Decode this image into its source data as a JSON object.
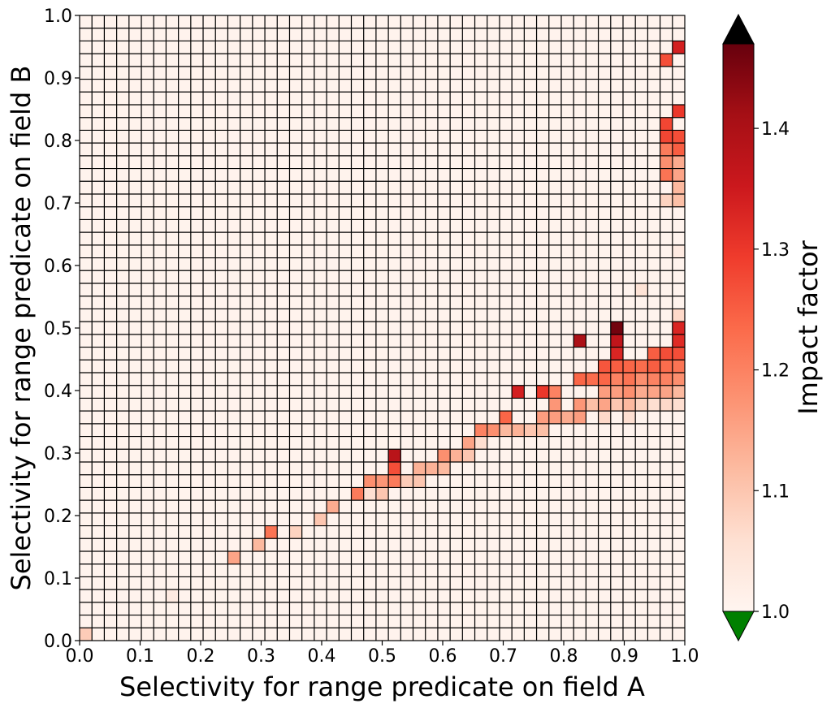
{
  "chart_data": {
    "type": "heatmap",
    "title": "",
    "xlabel": "Selectivity for range predicate on field A",
    "ylabel": "Selectivity for range predicate on field B",
    "xlim": [
      0.0,
      1.0
    ],
    "ylim": [
      0.0,
      1.0
    ],
    "grid_bins": 49,
    "x_ticks": [
      "0.0",
      "0.1",
      "0.2",
      "0.3",
      "0.4",
      "0.5",
      "0.6",
      "0.7",
      "0.8",
      "0.9",
      "1.0"
    ],
    "y_ticks": [
      "0.0",
      "0.1",
      "0.2",
      "0.3",
      "0.4",
      "0.5",
      "0.6",
      "0.7",
      "0.8",
      "0.9",
      "1.0"
    ],
    "colormap": "Reds",
    "colorbar": {
      "label": "Impact factor",
      "range": [
        1.0,
        1.47
      ],
      "ticks": [
        "1.0",
        "1.1",
        "1.2",
        "1.3",
        "1.4"
      ],
      "over_color": "#000000",
      "under_color": "#008000"
    },
    "base_value": 1.005,
    "cells": [
      [
        0,
        0,
        1.09
      ],
      [
        7,
        3,
        1.03
      ],
      [
        12,
        6,
        1.15
      ],
      [
        14,
        7,
        1.12
      ],
      [
        15,
        8,
        1.22
      ],
      [
        17,
        8,
        1.08
      ],
      [
        19,
        9,
        1.1
      ],
      [
        20,
        10,
        1.14
      ],
      [
        22,
        11,
        1.21
      ],
      [
        23,
        11,
        1.06
      ],
      [
        23,
        12,
        1.18
      ],
      [
        24,
        11,
        1.1
      ],
      [
        24,
        12,
        1.17
      ],
      [
        25,
        12,
        1.21
      ],
      [
        25,
        13,
        1.27
      ],
      [
        25,
        14,
        1.38
      ],
      [
        26,
        12,
        1.09
      ],
      [
        27,
        12,
        1.1
      ],
      [
        27,
        13,
        1.13
      ],
      [
        28,
        13,
        1.13
      ],
      [
        29,
        13,
        1.12
      ],
      [
        29,
        14,
        1.18
      ],
      [
        30,
        14,
        1.13
      ],
      [
        31,
        14,
        1.1
      ],
      [
        31,
        15,
        1.15
      ],
      [
        32,
        15,
        1.06
      ],
      [
        32,
        16,
        1.2
      ],
      [
        33,
        16,
        1.18
      ],
      [
        34,
        16,
        1.12
      ],
      [
        34,
        17,
        1.24
      ],
      [
        35,
        16,
        1.13
      ],
      [
        35,
        19,
        1.34
      ],
      [
        36,
        16,
        1.1
      ],
      [
        37,
        16,
        1.11
      ],
      [
        37,
        17,
        1.16
      ],
      [
        37,
        19,
        1.3
      ],
      [
        38,
        17,
        1.16
      ],
      [
        38,
        18,
        1.17
      ],
      [
        38,
        19,
        1.2
      ],
      [
        39,
        17,
        1.14
      ],
      [
        40,
        17,
        1.16
      ],
      [
        40,
        18,
        1.17
      ],
      [
        40,
        20,
        1.24
      ],
      [
        40,
        23,
        1.4
      ],
      [
        41,
        18,
        1.11
      ],
      [
        41,
        20,
        1.23
      ],
      [
        42,
        17,
        1.07
      ],
      [
        42,
        18,
        1.15
      ],
      [
        42,
        19,
        1.16
      ],
      [
        42,
        20,
        1.24
      ],
      [
        42,
        21,
        1.26
      ],
      [
        43,
        18,
        1.1
      ],
      [
        43,
        19,
        1.16
      ],
      [
        43,
        20,
        1.2
      ],
      [
        43,
        21,
        1.25
      ],
      [
        43,
        22,
        1.33
      ],
      [
        43,
        23,
        1.37
      ],
      [
        43,
        24,
        1.46
      ],
      [
        44,
        17,
        1.06
      ],
      [
        44,
        18,
        1.12
      ],
      [
        44,
        19,
        1.18
      ],
      [
        44,
        20,
        1.22
      ],
      [
        44,
        21,
        1.24
      ],
      [
        45,
        18,
        1.08
      ],
      [
        45,
        19,
        1.14
      ],
      [
        45,
        20,
        1.18
      ],
      [
        45,
        21,
        1.23
      ],
      [
        45,
        27,
        1.05
      ],
      [
        46,
        18,
        1.06
      ],
      [
        46,
        19,
        1.15
      ],
      [
        46,
        20,
        1.2
      ],
      [
        46,
        21,
        1.25
      ],
      [
        46,
        22,
        1.25
      ],
      [
        47,
        18,
        1.07
      ],
      [
        47,
        19,
        1.15
      ],
      [
        47,
        20,
        1.2
      ],
      [
        47,
        21,
        1.23
      ],
      [
        47,
        22,
        1.27
      ],
      [
        47,
        36,
        1.22
      ],
      [
        47,
        38,
        1.21
      ],
      [
        47,
        39,
        1.28
      ],
      [
        47,
        40,
        1.28
      ],
      [
        47,
        45,
        1.27
      ],
      [
        48,
        18,
        1.06
      ],
      [
        48,
        19,
        1.12
      ],
      [
        48,
        20,
        1.18
      ],
      [
        48,
        21,
        1.22
      ],
      [
        48,
        22,
        1.27
      ],
      [
        48,
        23,
        1.32
      ],
      [
        48,
        24,
        1.33
      ],
      [
        48,
        25,
        1.07
      ],
      [
        48,
        30,
        1.03
      ],
      [
        48,
        34,
        1.11
      ],
      [
        48,
        35,
        1.12
      ],
      [
        48,
        36,
        1.15
      ],
      [
        48,
        38,
        1.25
      ],
      [
        48,
        39,
        1.27
      ],
      [
        48,
        41,
        1.3
      ],
      [
        48,
        46,
        1.34
      ],
      [
        47,
        34,
        1.08
      ],
      [
        47,
        37,
        1.18
      ],
      [
        48,
        37,
        1.14
      ]
    ]
  }
}
